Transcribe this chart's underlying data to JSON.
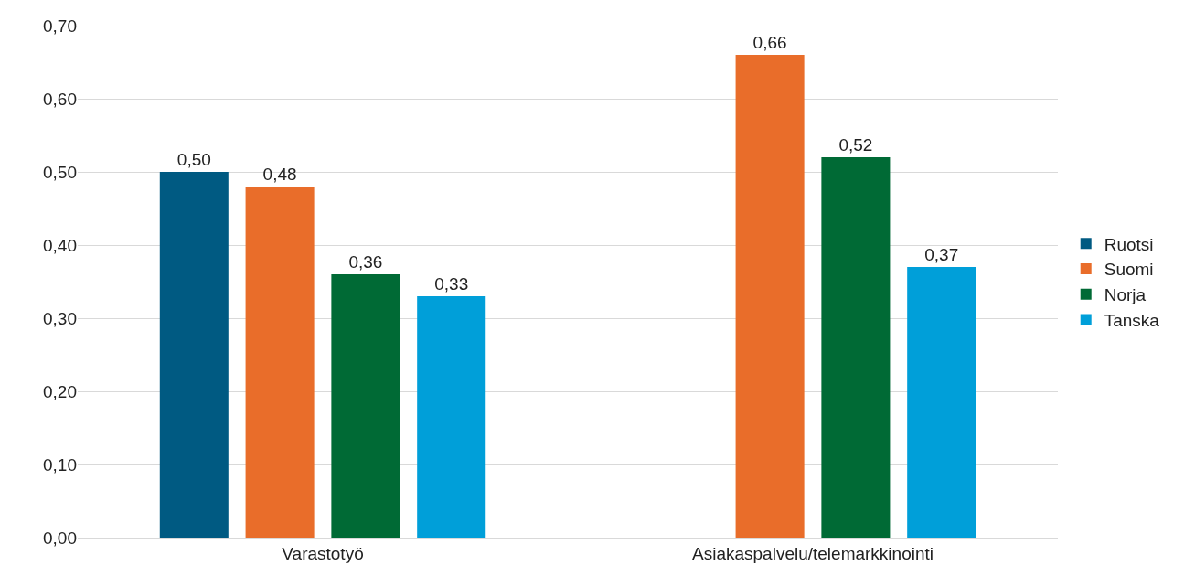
{
  "chart_data": {
    "type": "bar",
    "categories": [
      "Varastotyö",
      "Asiakaspalvelu/telemarkkinointi"
    ],
    "series": [
      {
        "name": "Ruotsi",
        "color": "#005a82",
        "values": [
          0.5,
          null
        ],
        "value_labels": [
          "0,50",
          null
        ]
      },
      {
        "name": "Suomi",
        "color": "#e96d2a",
        "values": [
          0.48,
          0.66
        ],
        "value_labels": [
          "0,48",
          "0,66"
        ]
      },
      {
        "name": "Norja",
        "color": "#006a35",
        "values": [
          0.36,
          0.52
        ],
        "value_labels": [
          "0,36",
          "0,52"
        ]
      },
      {
        "name": "Tanska",
        "color": "#009fd9",
        "values": [
          0.33,
          0.37
        ],
        "value_labels": [
          "0,33",
          "0,37"
        ]
      }
    ],
    "ylim": [
      0,
      0.7
    ],
    "yticks": [
      {
        "value": 0,
        "label": "0,00"
      },
      {
        "value": 0.1,
        "label": "0,10"
      },
      {
        "value": 0.2,
        "label": "0,20"
      },
      {
        "value": 0.3,
        "label": "0,30"
      },
      {
        "value": 0.4,
        "label": "0,40"
      },
      {
        "value": 0.5,
        "label": "0,50"
      },
      {
        "value": 0.6,
        "label": "0,60"
      },
      {
        "value": 0.7,
        "label": "0,70"
      }
    ],
    "grid": "y",
    "legend": "right"
  }
}
